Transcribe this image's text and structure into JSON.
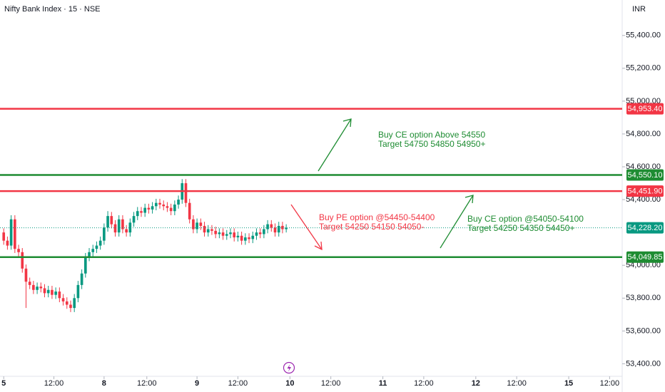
{
  "chart_data": {
    "type": "candlestick",
    "title": "Nifty Bank Index · 15 · NSE",
    "currency": "INR",
    "up_color": "#089981",
    "down_color": "#f23645",
    "x": [
      0,
      1,
      2,
      3,
      4,
      5,
      6,
      7,
      8,
      9,
      10,
      11,
      12,
      13,
      14,
      15,
      16,
      17,
      18,
      19,
      20,
      21,
      22,
      23,
      24,
      25,
      26,
      27,
      28,
      29,
      30,
      31,
      32,
      33,
      34,
      35,
      36,
      37,
      38,
      39,
      40,
      41,
      42,
      43,
      44,
      45,
      46,
      47,
      48,
      49,
      50,
      51,
      52,
      53,
      54,
      55,
      56,
      57,
      58,
      59,
      60,
      61,
      62,
      63,
      64,
      65,
      66,
      67,
      68,
      69,
      70,
      71,
      72,
      73,
      74,
      75,
      76
    ],
    "open": [
      54200,
      54150,
      54120,
      54280,
      54100,
      54080,
      53980,
      53900,
      53880,
      53850,
      53870,
      53860,
      53830,
      53850,
      53820,
      53840,
      53800,
      53780,
      53760,
      53740,
      53800,
      53880,
      53950,
      54050,
      54080,
      54100,
      54120,
      54150,
      54230,
      54300,
      54250,
      54200,
      54280,
      54220,
      54200,
      54260,
      54300,
      54330,
      54320,
      54350,
      54340,
      54360,
      54380,
      54370,
      54360,
      54350,
      54330,
      54370,
      54400,
      54500,
      54380,
      54280,
      54220,
      54260,
      54240,
      54200,
      54220,
      54210,
      54190,
      54200,
      54180,
      54190,
      54200,
      54170,
      54180,
      54150,
      54170,
      54160,
      54180,
      54200,
      54190,
      54220,
      54250,
      54230,
      54200,
      54240,
      54220
    ],
    "high": [
      54225,
      54175,
      54305,
      54305,
      54125,
      54105,
      54005,
      53925,
      53905,
      53895,
      53895,
      53885,
      53875,
      53875,
      53865,
      53865,
      53825,
      53805,
      53785,
      53825,
      53905,
      53975,
      54075,
      54105,
      54125,
      54145,
      54175,
      54255,
      54330,
      54325,
      54275,
      54305,
      54305,
      54245,
      54285,
      54325,
      54355,
      54355,
      54375,
      54375,
      54385,
      54405,
      54405,
      54395,
      54385,
      54375,
      54395,
      54425,
      54525,
      54525,
      54405,
      54305,
      54285,
      54285,
      54265,
      54245,
      54245,
      54235,
      54225,
      54225,
      54215,
      54225,
      54225,
      54205,
      54205,
      54195,
      54195,
      54205,
      54225,
      54225,
      54245,
      54275,
      54275,
      54255,
      54265,
      54265,
      54250
    ],
    "low": [
      54125,
      54095,
      54095,
      54075,
      54055,
      53955,
      53740,
      53855,
      53825,
      53825,
      53835,
      53805,
      53805,
      53795,
      53795,
      53775,
      53755,
      53735,
      53715,
      53715,
      53775,
      53855,
      53925,
      54025,
      54055,
      54075,
      54095,
      54125,
      54205,
      54225,
      54175,
      54175,
      54195,
      54175,
      54175,
      54235,
      54275,
      54295,
      54295,
      54315,
      54315,
      54335,
      54345,
      54335,
      54325,
      54305,
      54305,
      54345,
      54375,
      54355,
      54255,
      54195,
      54195,
      54215,
      54175,
      54175,
      54185,
      54165,
      54165,
      54155,
      54155,
      54165,
      54145,
      54145,
      54125,
      54125,
      54135,
      54135,
      54155,
      54165,
      54165,
      54195,
      54205,
      54175,
      54175,
      54195,
      54200
    ],
    "close": [
      54150,
      54120,
      54280,
      54100,
      54080,
      53980,
      53900,
      53880,
      53850,
      53870,
      53860,
      53830,
      53850,
      53820,
      53840,
      53800,
      53780,
      53760,
      53740,
      53800,
      53880,
      53950,
      54050,
      54080,
      54100,
      54120,
      54150,
      54230,
      54300,
      54250,
      54200,
      54280,
      54220,
      54200,
      54260,
      54300,
      54330,
      54320,
      54350,
      54340,
      54360,
      54380,
      54370,
      54360,
      54350,
      54330,
      54370,
      54400,
      54500,
      54380,
      54280,
      54220,
      54260,
      54240,
      54200,
      54220,
      54210,
      54190,
      54200,
      54180,
      54190,
      54200,
      54170,
      54180,
      54150,
      54170,
      54160,
      54180,
      54200,
      54190,
      54220,
      54250,
      54230,
      54200,
      54240,
      54220,
      54228.2
    ],
    "xlim": [
      -1,
      166
    ],
    "xticks": [
      {
        "value": 0,
        "label": "5"
      },
      {
        "value": 13.5,
        "label": "12:00"
      },
      {
        "value": 27,
        "label": "8"
      },
      {
        "value": 38.5,
        "label": "12:00"
      },
      {
        "value": 52,
        "label": "9"
      },
      {
        "value": 63,
        "label": "12:00"
      },
      {
        "value": 77,
        "label": "10"
      },
      {
        "value": 88,
        "label": "12:00"
      },
      {
        "value": 102,
        "label": "11"
      },
      {
        "value": 113,
        "label": "12:00"
      },
      {
        "value": 127,
        "label": "12"
      },
      {
        "value": 138,
        "label": "12:00"
      },
      {
        "value": 152,
        "label": "15"
      },
      {
        "value": 163,
        "label": "12:00"
      }
    ],
    "ylim": [
      53315,
      55616
    ],
    "yticks": [
      {
        "value": 53400,
        "label": "53,400.00"
      },
      {
        "value": 53600,
        "label": "53,600.00"
      },
      {
        "value": 53800,
        "label": "53,800.00"
      },
      {
        "value": 54000,
        "label": "54,000.00"
      },
      {
        "value": 54400,
        "label": "54,400.00"
      },
      {
        "value": 54600,
        "label": "54,600.00"
      },
      {
        "value": 54800,
        "label": "54,800.00"
      },
      {
        "value": 55000,
        "label": "55,000.00"
      },
      {
        "value": 55200,
        "label": "55,200.00"
      },
      {
        "value": 55400,
        "label": "55,400.00"
      }
    ],
    "levels": [
      {
        "value": 54953.4,
        "label": "54,953.40",
        "color": "#f23645"
      },
      {
        "value": 54550.1,
        "label": "54,550.10",
        "color": "#1e8c32"
      },
      {
        "value": 54451.9,
        "label": "54,451.90",
        "color": "#f23645"
      },
      {
        "value": 54049.85,
        "label": "54,049.85",
        "color": "#1e8c32"
      }
    ],
    "last_price": {
      "value": 54228.2,
      "label": "54,228.20",
      "color": "#089981"
    },
    "annotations": [
      {
        "lines": [
          "Buy CE option Above 54550",
          "Target 54750 54850 54950+"
        ],
        "color": "#1e8c32"
      },
      {
        "lines": [
          "Buy PE option @54450-54400",
          "Target 54250 54150 54050-"
        ],
        "color": "#f23645"
      },
      {
        "lines": [
          "Buy CE option @54050-54100",
          "Target 54250 54350 54450+"
        ],
        "color": "#1e8c32"
      }
    ]
  }
}
